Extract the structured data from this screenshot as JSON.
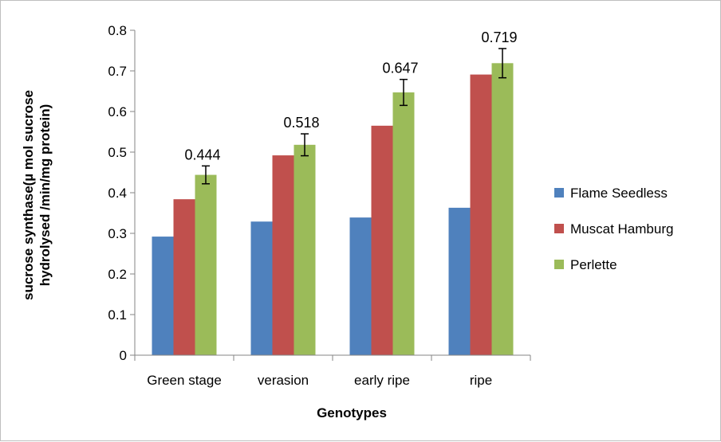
{
  "chart_data": {
    "type": "bar",
    "title": "",
    "xlabel": "Genotypes",
    "ylabel_lines": [
      "sucrose synthase(µ mol sucrose",
      "hydrolysed /min/mg protein)"
    ],
    "categories": [
      "Green stage",
      "verasion",
      "early ripe",
      "ripe"
    ],
    "ylim": [
      0,
      0.8
    ],
    "yticks": [
      0,
      0.1,
      0.2,
      0.3,
      0.4,
      0.5,
      0.6,
      0.7,
      0.8
    ],
    "ytick_labels": [
      "0",
      "0.1",
      "0.2",
      "0.3",
      "0.4",
      "0.5",
      "0.6",
      "0.7",
      "0.8"
    ],
    "grid": false,
    "legend_position": "right",
    "series": [
      {
        "name": "Flame Seedless",
        "color": "#4f81bd",
        "values": [
          0.292,
          0.329,
          0.339,
          0.363
        ]
      },
      {
        "name": "Muscat Hamburg",
        "color": "#c0504d",
        "values": [
          0.384,
          0.492,
          0.565,
          0.691
        ]
      },
      {
        "name": "Perlette",
        "color": "#9bbb59",
        "values": [
          0.444,
          0.518,
          0.647,
          0.719
        ],
        "errors": [
          0.022,
          0.027,
          0.032,
          0.036
        ],
        "data_labels": [
          "0.444",
          "0.518",
          "0.647",
          "0.719"
        ]
      }
    ]
  }
}
